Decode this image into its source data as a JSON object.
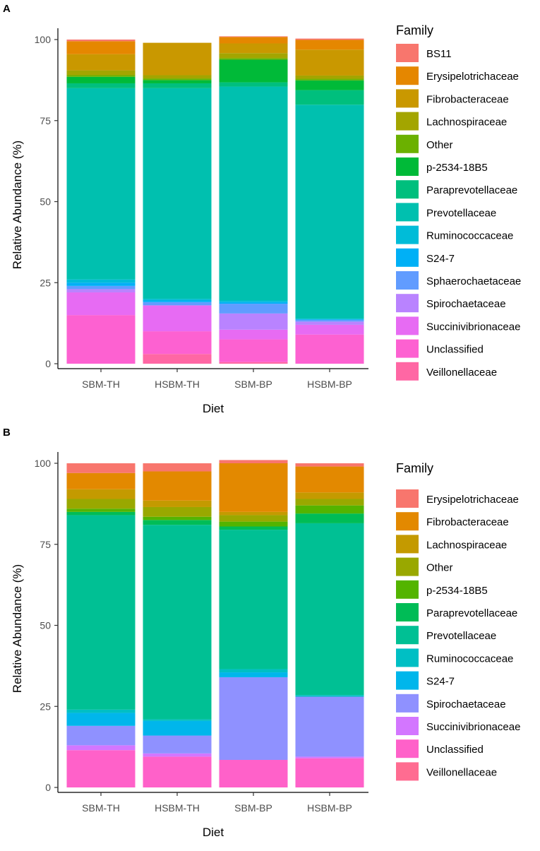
{
  "figure": {
    "panels": [
      {
        "label": "A",
        "chart_data": {
          "type": "bar",
          "stacked": true,
          "title": "",
          "xlabel": "Diet",
          "ylabel": "Relative Abundance (%)",
          "ylim": [
            0,
            100
          ],
          "yticks": [
            0,
            25,
            50,
            75,
            100
          ],
          "categories": [
            "SBM-TH",
            "HSBM-TH",
            "SBM-BP",
            "HSBM-BP"
          ],
          "legend_title": "Family",
          "legend_position": "right",
          "series": [
            {
              "name": "BS11",
              "color": "#F8766D",
              "values": [
                0.5,
                0,
                0.2,
                0.4
              ]
            },
            {
              "name": "Erysipelotrichaceae",
              "color": "#E58700",
              "values": [
                4,
                0,
                2,
                3
              ]
            },
            {
              "name": "Fibrobacteraceae",
              "color": "#C99800",
              "values": [
                5,
                10,
                3,
                8
              ]
            },
            {
              "name": "Lachnospiraceae",
              "color": "#A3A500",
              "values": [
                1.5,
                1,
                1.5,
                1
              ]
            },
            {
              "name": "Other",
              "color": "#6BB100",
              "values": [
                0.5,
                0.5,
                0.5,
                0.5
              ]
            },
            {
              "name": "p-2534-18B5",
              "color": "#00BA38",
              "values": [
                2,
                1,
                7,
                3
              ]
            },
            {
              "name": "Paraprevotellaceae",
              "color": "#00BF7D",
              "values": [
                1.5,
                1.5,
                1.3,
                4.5
              ]
            },
            {
              "name": "Prevotellaceae",
              "color": "#00C0AF",
              "values": [
                59,
                65,
                66,
                66
              ]
            },
            {
              "name": "Ruminococcaceae",
              "color": "#00BCD8",
              "values": [
                1,
                0.5,
                0.5,
                0.2
              ]
            },
            {
              "name": "S24-7",
              "color": "#00B0F6",
              "values": [
                1,
                0.5,
                0.5,
                0.2
              ]
            },
            {
              "name": "Sphaerochaetaceae",
              "color": "#619CFF",
              "values": [
                1,
                1,
                3,
                0.5
              ]
            },
            {
              "name": "Spirochaetaceae",
              "color": "#B983FF",
              "values": [
                1,
                0,
                5,
                1
              ]
            },
            {
              "name": "Succinivibrionaceae",
              "color": "#E76BF3",
              "values": [
                7,
                8,
                3,
                3
              ]
            },
            {
              "name": "Unclassified",
              "color": "#FD61D1",
              "values": [
                15,
                7,
                7,
                9
              ]
            },
            {
              "name": "Veillonellaceae",
              "color": "#FF67A4",
              "values": [
                0,
                3,
                0.5,
                0
              ]
            }
          ]
        }
      },
      {
        "label": "B",
        "chart_data": {
          "type": "bar",
          "stacked": true,
          "title": "",
          "xlabel": "Diet",
          "ylabel": "Relative Abundance (%)",
          "ylim": [
            0,
            100
          ],
          "yticks": [
            0,
            25,
            50,
            75,
            100
          ],
          "categories": [
            "SBM-TH",
            "HSBM-TH",
            "SBM-BP",
            "HSBM-BP"
          ],
          "legend_title": "Family",
          "legend_position": "right",
          "series": [
            {
              "name": "Erysipelotrichaceae",
              "color": "#F8766D",
              "values": [
                3,
                2.5,
                1,
                1
              ]
            },
            {
              "name": "Fibrobacteraceae",
              "color": "#E38900",
              "values": [
                5,
                9,
                15,
                8
              ]
            },
            {
              "name": "Lachnospiraceae",
              "color": "#C49A00",
              "values": [
                3,
                2,
                1,
                2
              ]
            },
            {
              "name": "Other",
              "color": "#99A800",
              "values": [
                3,
                3,
                2,
                2
              ]
            },
            {
              "name": "p-2534-18B5",
              "color": "#53B400",
              "values": [
                1,
                1,
                1.5,
                2.5
              ]
            },
            {
              "name": "Paraprevotellaceae",
              "color": "#00BC56",
              "values": [
                1,
                1.5,
                1,
                3
              ]
            },
            {
              "name": "Prevotellaceae",
              "color": "#00C094",
              "values": [
                60,
                60,
                43,
                53
              ]
            },
            {
              "name": "Ruminococcaceae",
              "color": "#00BFC4",
              "values": [
                1,
                0.5,
                1,
                0.5
              ]
            },
            {
              "name": "S24-7",
              "color": "#00B6EB",
              "values": [
                4,
                4.5,
                1.5,
                0
              ]
            },
            {
              "name": "Spirochaetaceae",
              "color": "#8F91FF",
              "values": [
                6,
                5.5,
                25.5,
                18.5
              ]
            },
            {
              "name": "Succinivibrionaceae",
              "color": "#D376FF",
              "values": [
                1.5,
                1,
                0,
                0.5
              ]
            },
            {
              "name": "Unclassified",
              "color": "#FF61C9",
              "values": [
                11.5,
                9.5,
                8.5,
                9
              ]
            },
            {
              "name": "Veillonellaceae",
              "color": "#FF6C91",
              "values": [
                0,
                0,
                0,
                0
              ]
            }
          ]
        }
      }
    ]
  }
}
